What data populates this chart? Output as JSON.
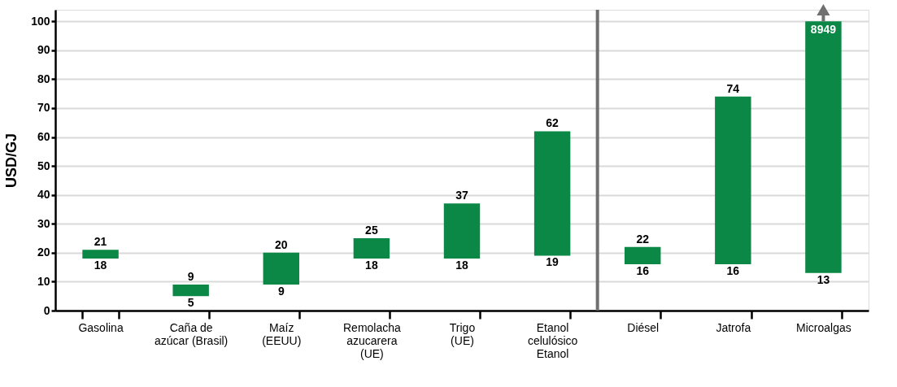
{
  "chart_data": {
    "type": "bar",
    "ylabel": "USD/GJ",
    "categories": [
      "Gasolina",
      "Caña de\nazúcar (Brasil)",
      "Maíz\n(EEUU)",
      "Remolacha\nazucarera\n(UE)",
      "Trigo\n(UE)",
      "Etanol\ncelulósico\nEtanol",
      "Diésel",
      "Jatrofa",
      "Microalgas"
    ],
    "base": [
      18,
      5,
      9,
      18,
      18,
      19,
      16,
      16,
      13
    ],
    "values": [
      3,
      4,
      11,
      7,
      19,
      43,
      6,
      58,
      87
    ],
    "color": "#0b8845",
    "annotations": [
      {
        "text": "21",
        "x": "Gasolina",
        "y": 21
      },
      {
        "text": "18",
        "x": "Gasolina",
        "y": 18
      },
      {
        "text": "9",
        "x": "Caña de\nazúcar (Brasil)",
        "y": 9
      },
      {
        "text": "5",
        "x": "Caña de\nazúcar (Brasil)",
        "y": 5
      },
      {
        "text": "20",
        "x": "Maíz\n(EEUU)",
        "y": 20
      },
      {
        "text": "9",
        "x": "Maíz\n(EEUU)",
        "y": 9
      },
      {
        "text": "25",
        "x": "Remolacha\nazucarera\n(UE)",
        "y": 25
      },
      {
        "text": "18",
        "x": "Remolacha\nazucarera\n(UE)",
        "y": 18
      },
      {
        "text": "37",
        "x": "Trigo\n(UE)",
        "y": 37
      },
      {
        "text": "18",
        "x": "Trigo\n(UE)",
        "y": 18
      },
      {
        "text": "62",
        "x": "Etanol\ncelulósico\nEtanol",
        "y": 62
      },
      {
        "text": "19",
        "x": "Etanol\ncelulósico\nEtanol",
        "y": 19
      },
      {
        "text": "22",
        "x": "Diésel",
        "y": 22
      },
      {
        "text": "16",
        "x": "Diésel",
        "y": 16
      },
      {
        "text": "74",
        "x": "Jatrofa",
        "y": 74
      },
      {
        "text": "16",
        "x": "Jatrofa",
        "y": 16
      },
      {
        "text": "8949",
        "x": "Microalgas",
        "y": 100
      },
      {
        "text": "13",
        "x": "Microalgas",
        "y": 13
      }
    ],
    "ref_lines": [
      {
        "axis": "x",
        "value": "Diésel",
        "color": "#707070",
        "line_style": "solid"
      }
    ],
    "ylim": [
      0,
      104
    ],
    "yticks": [
      0,
      10,
      20,
      30,
      40,
      50,
      60,
      70,
      80,
      90,
      100
    ],
    "grid": "y"
  }
}
